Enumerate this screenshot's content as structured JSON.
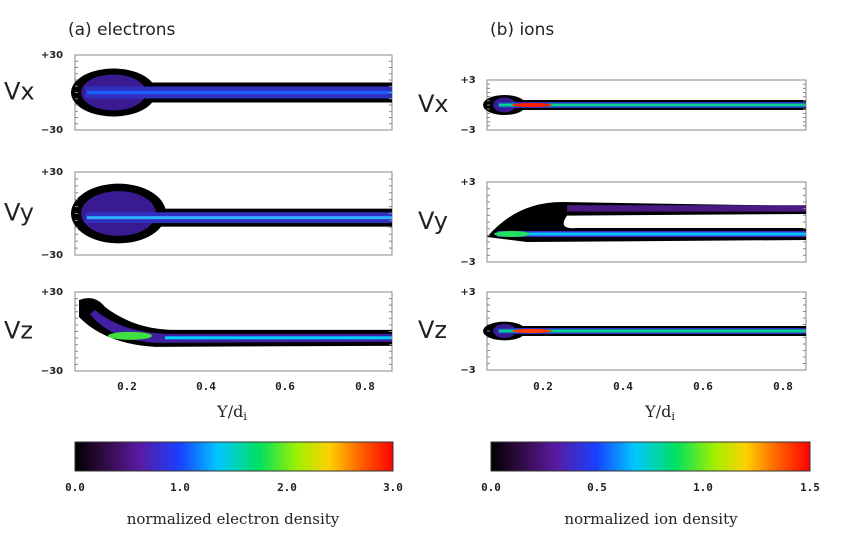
{
  "panels": [
    {
      "title": "(a) electrons",
      "rows": [
        {
          "label": "Vx",
          "ytick_top": "+30",
          "ytick_bottom": "−30"
        },
        {
          "label": "Vy",
          "ytick_top": "+30",
          "ytick_bottom": "−30"
        },
        {
          "label": "Vz",
          "ytick_top": "+30",
          "ytick_bottom": "−30"
        }
      ],
      "xticks": [
        "0.2",
        "0.4",
        "0.6",
        "0.8"
      ],
      "xlabel": {
        "text": "Y/d",
        "subscript": "i"
      },
      "colorbar": {
        "ticks": [
          "0.0",
          "1.0",
          "2.0",
          "3.0"
        ],
        "label": "normalized electron density"
      }
    },
    {
      "title": "(b) ions",
      "rows": [
        {
          "label": "Vx",
          "ytick_top": "+3",
          "ytick_bottom": "−3"
        },
        {
          "label": "Vy",
          "ytick_top": "+3",
          "ytick_bottom": "−3"
        },
        {
          "label": "Vz",
          "ytick_top": "+3",
          "ytick_bottom": "−3"
        }
      ],
      "xticks": [
        "0.2",
        "0.4",
        "0.6",
        "0.8"
      ],
      "xlabel": {
        "text": "Y/d",
        "subscript": "i"
      },
      "colorbar": {
        "ticks": [
          "0.0",
          "0.5",
          "1.0",
          "1.5"
        ],
        "label": "normalized ion density"
      }
    }
  ]
}
